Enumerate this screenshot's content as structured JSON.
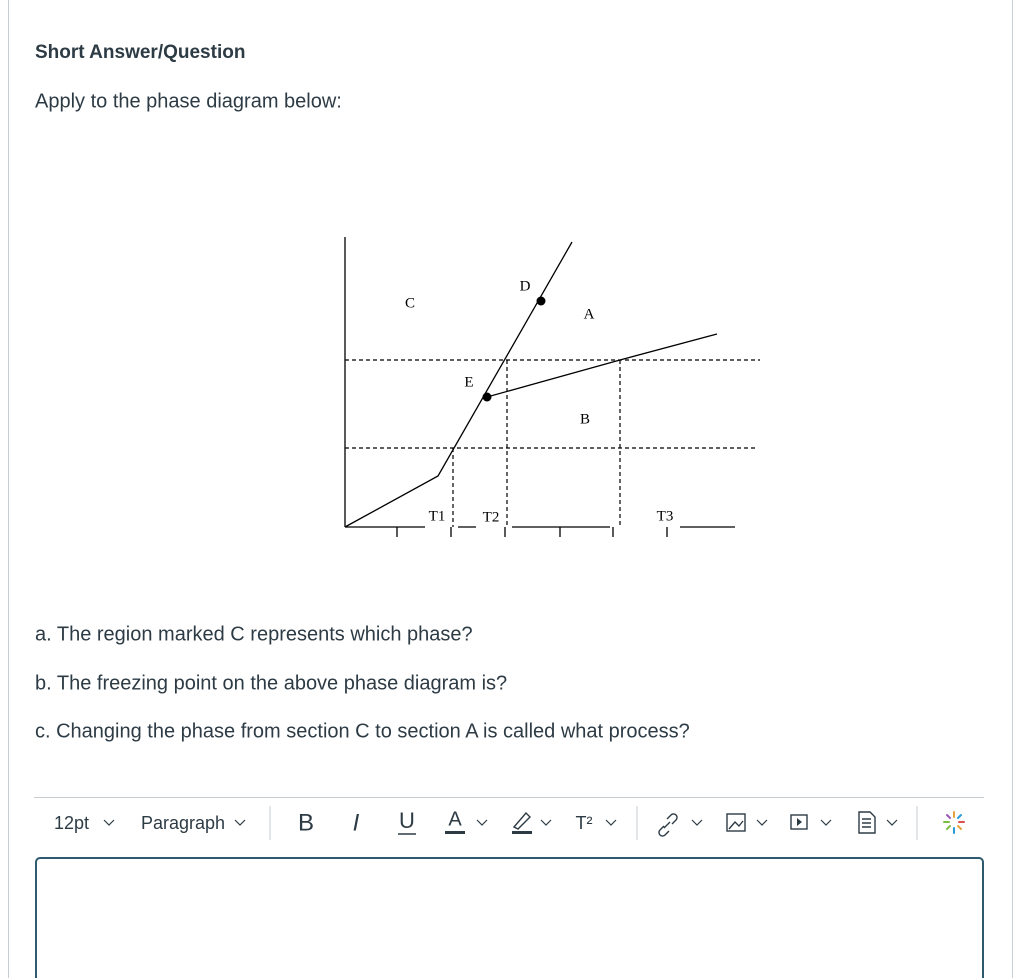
{
  "header": {
    "title": "Short Answer/Question"
  },
  "prompt": "Apply to the phase diagram below:",
  "diagram": {
    "labels": [
      "C",
      "D",
      "A",
      "E",
      "B",
      "T1",
      "T2",
      "T3"
    ]
  },
  "questions": [
    "a. The region marked C represents which phase?",
    "b. The freezing point on the above phase diagram is?",
    "c. Changing the phase from section C to section A is called what process?"
  ],
  "toolbar": {
    "font_size": "12pt",
    "block_format": "Paragraph",
    "buttons": [
      "B",
      "I",
      "U",
      "A",
      "T²"
    ]
  }
}
